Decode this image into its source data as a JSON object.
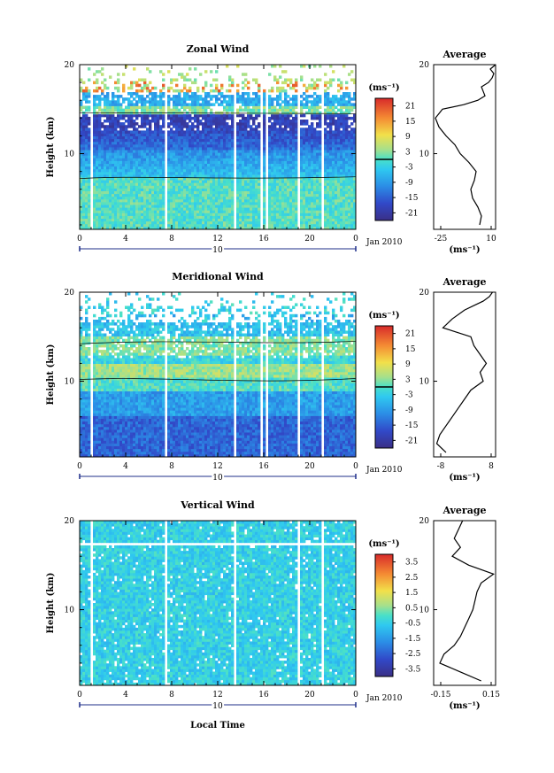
{
  "figure": {
    "x_axis_title": "Local Time",
    "date_bar_label": "10",
    "date_label": "Jan 2010"
  },
  "chart_data": [
    {
      "type": "heatmap",
      "title": "Zonal Wind",
      "ylabel": "Height (km)",
      "xlabel": "Local Time",
      "x_ticks": [
        "0",
        "4",
        "8",
        "12",
        "16",
        "20",
        "0"
      ],
      "y_ticks": [
        "20",
        "10"
      ],
      "xlim": [
        0,
        24
      ],
      "ylim": [
        1.5,
        20
      ],
      "colorbar": {
        "unit": "(ms⁻¹)",
        "ticks": [
          "21",
          "15",
          "9",
          "3",
          "-3",
          "-9",
          "-15",
          "-21"
        ],
        "range": [
          -24,
          24
        ],
        "contour_at": 0
      },
      "profile": {
        "title": "Average",
        "x_ticks": [
          "-25",
          "10"
        ],
        "xlim": [
          -25,
          10
        ],
        "xlabel": "(ms⁻¹)",
        "heights": [
          2,
          3,
          4,
          5,
          6,
          7,
          8,
          9,
          10,
          11,
          12,
          13,
          14,
          15,
          15.5,
          16,
          16.5,
          17,
          17.5,
          18,
          18.5,
          19,
          19.5,
          20
        ],
        "values": [
          1,
          2,
          0,
          -3,
          -4,
          -2,
          -1,
          -5,
          -10,
          -13,
          -18,
          -22,
          -24,
          -20,
          -8,
          0,
          4,
          3,
          2,
          6,
          8,
          9,
          7,
          10
        ]
      }
    },
    {
      "type": "heatmap",
      "title": "Meridional Wind",
      "ylabel": "Height (km)",
      "xlabel": "Local Time",
      "x_ticks": [
        "0",
        "4",
        "8",
        "12",
        "16",
        "20",
        "0"
      ],
      "y_ticks": [
        "20",
        "10"
      ],
      "xlim": [
        0,
        24
      ],
      "ylim": [
        1.5,
        20
      ],
      "colorbar": {
        "unit": "(ms⁻¹)",
        "ticks": [
          "21",
          "15",
          "9",
          "3",
          "-3",
          "-9",
          "-15",
          "-21"
        ],
        "range": [
          -24,
          24
        ],
        "contour_at": 0
      },
      "profile": {
        "title": "Average",
        "x_ticks": [
          "-8",
          "8"
        ],
        "xlim": [
          -10,
          10
        ],
        "xlabel": "(ms⁻¹)",
        "heights": [
          2,
          3,
          4,
          5,
          6,
          7,
          8,
          9,
          10,
          11,
          12,
          13,
          14,
          15,
          16,
          17,
          18,
          18.5,
          19,
          19.5,
          20
        ],
        "values": [
          -6,
          -9,
          -8,
          -6,
          -4,
          -2,
          0,
          2,
          6,
          5,
          7,
          5,
          3,
          2,
          -7,
          -4,
          0,
          3,
          6,
          8,
          9
        ]
      }
    },
    {
      "type": "heatmap",
      "title": "Vertical Wind",
      "ylabel": "Height (km)",
      "xlabel": "Local Time",
      "x_ticks": [
        "0",
        "4",
        "8",
        "12",
        "16",
        "20",
        "0"
      ],
      "y_ticks": [
        "20",
        "10"
      ],
      "xlim": [
        0,
        24
      ],
      "ylim": [
        1.5,
        20
      ],
      "colorbar": {
        "unit": "(ms⁻¹)",
        "ticks": [
          "3.5",
          "2.5",
          "1.5",
          "0.5",
          "-0.5",
          "-1.5",
          "-2.5",
          "-3.5"
        ],
        "range": [
          -4,
          4
        ]
      },
      "profile": {
        "title": "Average",
        "x_ticks": [
          "-0.15",
          "0.15"
        ],
        "xlim": [
          -0.15,
          0.15
        ],
        "xlabel": "(ms⁻¹)",
        "heights": [
          2,
          3,
          4,
          5,
          6,
          7,
          8,
          9,
          10,
          11,
          12,
          13,
          14,
          15,
          16,
          17,
          18,
          19,
          20
        ],
        "values": [
          0.08,
          -0.02,
          -0.12,
          -0.1,
          -0.05,
          -0.02,
          0.0,
          0.02,
          0.04,
          0.05,
          0.06,
          0.08,
          0.14,
          0.02,
          -0.06,
          -0.02,
          -0.05,
          -0.03,
          -0.01
        ]
      }
    }
  ]
}
